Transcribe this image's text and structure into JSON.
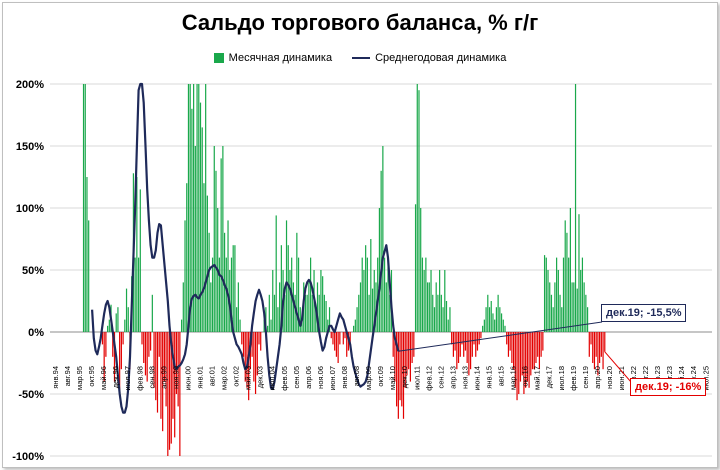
{
  "title": "Сальдо торгового баланса, % г/г",
  "legend": {
    "bar_label": "Месячная динамика",
    "line_label": "Среднегодовая динамика"
  },
  "colors": {
    "positive_bar": "#1aa84b",
    "negative_bar": "#e30000",
    "line": "#1f2a5a",
    "grid": "#d9d9d9"
  },
  "annotations": {
    "line": "дек.19; -15,5%",
    "bar": "дек.19; -16%"
  },
  "chart_data": {
    "type": "bar",
    "title": "Сальдо торгового баланса, % г/г",
    "ylim": [
      -100,
      200
    ],
    "yticks": [
      -100,
      -50,
      0,
      50,
      100,
      150,
      200
    ],
    "ytick_labels": [
      "-100%",
      "-50%",
      "0%",
      "50%",
      "100%",
      "150%",
      "200%"
    ],
    "x_tick_labels": [
      "янв.94",
      "авг.94",
      "мар.95",
      "окт.95",
      "май.96",
      "дек.96",
      "июл.97",
      "фев.98",
      "сен.98",
      "апр.99",
      "ноя.99",
      "июн.00",
      "янв.01",
      "авг.01",
      "мар.02",
      "окт.02",
      "май.03",
      "дек.03",
      "июл.04",
      "фев.05",
      "сен.05",
      "апр.06",
      "ноя.06",
      "июн.07",
      "янв.08",
      "авг.08",
      "мар.09",
      "окт.09",
      "май.10",
      "дек.10",
      "июл.11",
      "фев.12",
      "сен.12",
      "апр.13",
      "ноя.13",
      "июн.14",
      "янв.15",
      "авг.15",
      "мар.16",
      "окт.16",
      "май.17",
      "дек.17",
      "июл.18",
      "фев.19",
      "сен.19",
      "апр.20",
      "ноя.20",
      "июн.21",
      "янв.22",
      "авг.22",
      "мар.23",
      "окт.23",
      "май.24",
      "дек.24",
      "июл.25"
    ],
    "series": [
      {
        "name": "Месячная динамика",
        "kind": "bar",
        "start": "янв.94",
        "values": [
          0,
          0,
          0,
          0,
          0,
          0,
          0,
          0,
          0,
          0,
          0,
          0,
          0,
          0,
          0,
          0,
          200,
          200,
          125,
          90,
          0,
          0,
          0,
          0,
          0,
          0,
          0,
          -10,
          -40,
          -20,
          5,
          10,
          22,
          -20,
          -40,
          15,
          20,
          -52,
          -30,
          -10,
          10,
          35,
          20,
          -30,
          45,
          128,
          60,
          125,
          60,
          115,
          -10,
          -25,
          -35,
          -40,
          -20,
          -15,
          30,
          -45,
          -55,
          -65,
          -20,
          -70,
          -80,
          -40,
          -60,
          -100,
          -95,
          -90,
          -70,
          -85,
          -50,
          -60,
          -100,
          10,
          40,
          90,
          120,
          200,
          200,
          180,
          200,
          150,
          200,
          200,
          185,
          165,
          120,
          200,
          110,
          80,
          40,
          60,
          150,
          130,
          100,
          60,
          140,
          150,
          80,
          60,
          90,
          50,
          60,
          70,
          70,
          20,
          40,
          10,
          -10,
          -20,
          -40,
          -45,
          -55,
          -30,
          -20,
          -40,
          -50,
          -35,
          -10,
          -15,
          0,
          10,
          20,
          5,
          30,
          10,
          50,
          30,
          94,
          20,
          40,
          70,
          50,
          30,
          90,
          70,
          50,
          60,
          40,
          30,
          80,
          60,
          20,
          10,
          40,
          30,
          30,
          40,
          60,
          30,
          50,
          20,
          40,
          30,
          50,
          45,
          30,
          25,
          10,
          20,
          -5,
          -10,
          -15,
          -20,
          -25,
          -10,
          0,
          -10,
          -5,
          -20,
          -15,
          -10,
          0,
          5,
          10,
          20,
          30,
          40,
          60,
          50,
          70,
          60,
          30,
          75,
          35,
          50,
          40,
          60,
          100,
          130,
          150,
          60,
          40,
          60,
          30,
          50,
          -20,
          -40,
          -60,
          -70,
          -55,
          -60,
          -70,
          -45,
          -35,
          -30,
          -40,
          -25,
          -20,
          103,
          200,
          195,
          100,
          60,
          50,
          60,
          40,
          40,
          50,
          30,
          20,
          40,
          30,
          50,
          30,
          20,
          50,
          25,
          10,
          20,
          -10,
          -20,
          -15,
          -30,
          -25,
          -20,
          -10,
          -20,
          -15,
          -25,
          -35,
          -30,
          -20,
          -10,
          -20,
          -15,
          -10,
          -5,
          5,
          10,
          20,
          30,
          20,
          25,
          15,
          10,
          20,
          30,
          20,
          15,
          10,
          5,
          -10,
          -20,
          -15,
          -25,
          -30,
          -45,
          -55,
          -50,
          -40,
          -35,
          -50,
          -45,
          -40,
          -45,
          -35,
          -30,
          -30,
          -25,
          -20,
          -30,
          -20,
          -15,
          62,
          60,
          50,
          40,
          30,
          20,
          40,
          60,
          50,
          30,
          20,
          60,
          90,
          80,
          60,
          100,
          40,
          40,
          200,
          35,
          95,
          50,
          60,
          40,
          30,
          20,
          -20,
          -10,
          -25,
          -30,
          -20,
          -35,
          -25,
          -20,
          -30,
          -16
        ],
        "last": "дек.19",
        "last_value": -16
      },
      {
        "name": "Среднегодовая динамика",
        "kind": "line",
        "start": "окт.95",
        "values": [
          18,
          -5,
          -15,
          -18,
          -12,
          -5,
          5,
          15,
          22,
          25,
          20,
          10,
          0,
          -10,
          -20,
          -35,
          -50,
          -60,
          -65,
          -65,
          -60,
          -45,
          -20,
          20,
          60,
          100,
          150,
          195,
          220,
          210,
          185,
          150,
          115,
          90,
          70,
          60,
          60,
          66,
          80,
          87,
          86,
          70,
          55,
          40,
          25,
          5,
          -10,
          -20,
          -28,
          -30,
          -28,
          -27,
          -25,
          -22,
          -18,
          -10,
          5,
          20,
          27,
          29,
          30,
          28,
          27,
          30,
          32,
          35,
          40,
          45,
          50,
          52,
          53,
          54,
          52,
          50,
          46,
          45,
          42,
          38,
          35,
          30,
          22,
          10,
          0,
          -5,
          -10,
          -12,
          -15,
          -18,
          -25,
          -30,
          -28,
          -20,
          -10,
          5,
          15,
          25,
          30,
          34,
          30,
          25,
          15,
          0,
          -20,
          -35,
          -45,
          -46,
          -40,
          -30,
          -20,
          -10,
          5,
          25,
          35,
          40,
          38,
          35,
          30,
          25,
          20,
          15,
          10,
          5,
          10,
          25,
          35,
          40,
          42,
          40,
          35,
          28,
          20,
          10,
          0,
          -8,
          -15,
          -12,
          -5,
          0,
          5,
          5,
          2,
          0,
          5,
          10,
          15,
          12,
          10,
          5,
          0,
          -5,
          -10,
          -20,
          -28,
          -33,
          -38,
          -42,
          -44,
          -43,
          -42,
          -40,
          -35,
          -25,
          -15,
          -5,
          5,
          15,
          25,
          35,
          48,
          60,
          65,
          70,
          60,
          40,
          20,
          5,
          -5,
          -10,
          -15.5
        ],
        "last": "дек.19",
        "last_value": -15.5
      }
    ],
    "grid": true,
    "legend_position": "top"
  }
}
